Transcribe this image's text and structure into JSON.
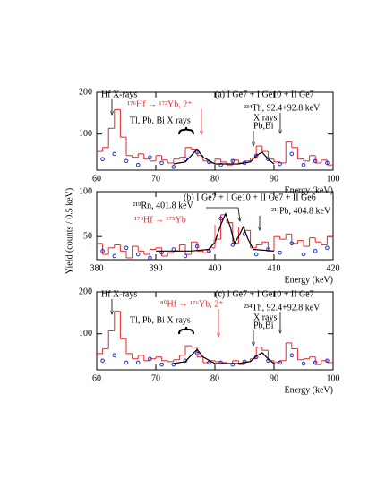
{
  "chart_data": [
    {
      "type": "histogram",
      "xlabel": "Energy (keV)",
      "log_y": true,
      "xlim": [
        60,
        100
      ],
      "ylim": [
        55,
        200
      ],
      "xticks": [
        60,
        70,
        80,
        90,
        100
      ],
      "yticks": [
        100,
        200
      ],
      "bins": [
        60,
        61,
        62,
        63,
        64,
        65,
        66,
        67,
        68,
        69,
        70,
        71,
        72,
        73,
        74,
        75,
        76,
        77,
        78,
        79,
        80,
        81,
        82,
        83,
        84,
        85,
        86,
        87,
        88,
        89,
        90,
        91,
        92,
        93,
        94,
        95,
        96,
        97,
        98,
        99,
        100
      ],
      "counts": [
        75,
        80,
        110,
        150,
        95,
        70,
        68,
        72,
        66,
        64,
        70,
        65,
        62,
        66,
        68,
        80,
        78,
        70,
        64,
        62,
        66,
        63,
        60,
        65,
        62,
        64,
        67,
        82,
        75,
        66,
        63,
        62,
        88,
        80,
        66,
        64,
        70,
        62,
        65,
        60
      ],
      "color": "#e8262a",
      "points": {
        "color": "#1f2fd6",
        "x": [
          61,
          63,
          65,
          67,
          69,
          71,
          73,
          75,
          77,
          79,
          81,
          83,
          85,
          87,
          89,
          91,
          93,
          95,
          97,
          99
        ],
        "values": [
          66,
          72,
          64,
          60,
          68,
          62,
          58,
          66,
          74,
          63,
          60,
          64,
          62,
          70,
          66,
          61,
          72,
          60,
          64,
          62
        ]
      },
      "fit": {
        "color": "#000000",
        "x": [
          73,
          75,
          76,
          77,
          78,
          80,
          84,
          86,
          87,
          88,
          89,
          90
        ],
        "values": [
          61,
          63,
          70,
          78,
          68,
          61,
          61,
          63,
          70,
          74,
          66,
          61
        ]
      },
      "annotations": [
        {
          "text": "Hf X-rays",
          "color": "#000000"
        },
        {
          "text": "(a) I Ge7 + I Ge10 + II Ge7",
          "color": "#000000"
        },
        {
          "text": "¹⁷⁶Hf → ¹⁷²Yb, 2⁺",
          "color": "#e8262a"
        },
        {
          "text": "²³⁴Th, 92.4+92.8 keV",
          "color": "#000000"
        },
        {
          "text": "Tl, Pb, Bi X rays",
          "color": "#000000"
        },
        {
          "text": "X rays",
          "color": "#000000"
        },
        {
          "text": "Pb,Bi",
          "color": "#000000"
        }
      ]
    },
    {
      "type": "histogram",
      "xlabel": "Energy (keV)",
      "ylabel": "Yield (counts / 0.5 keV)",
      "log_y": true,
      "xlim": [
        380,
        420
      ],
      "ylim": [
        35,
        100
      ],
      "xticks": [
        380,
        390,
        400,
        410,
        420
      ],
      "yticks": [
        50,
        100
      ],
      "bins": [
        380,
        381,
        382,
        383,
        384,
        385,
        386,
        387,
        388,
        389,
        390,
        391,
        392,
        393,
        394,
        395,
        396,
        397,
        398,
        399,
        400,
        401,
        402,
        403,
        404,
        405,
        406,
        407,
        408,
        409,
        410,
        411,
        412,
        413,
        414,
        415,
        416,
        417,
        418,
        419,
        420
      ],
      "counts": [
        45,
        38,
        42,
        44,
        40,
        36,
        43,
        40,
        38,
        41,
        42,
        37,
        39,
        40,
        44,
        38,
        46,
        40,
        39,
        42,
        48,
        70,
        62,
        45,
        58,
        55,
        42,
        44,
        46,
        40,
        50,
        48,
        52,
        45,
        47,
        43,
        49,
        46,
        44,
        50
      ],
      "color": "#e8262a",
      "points": {
        "color": "#1f2fd6",
        "x": [
          381,
          383,
          385,
          387,
          389,
          391,
          393,
          395,
          397,
          399,
          401,
          403,
          405,
          407,
          409,
          411,
          413,
          415,
          417,
          419
        ],
        "values": [
          40,
          37,
          42,
          38,
          36,
          39,
          41,
          37,
          43,
          40,
          66,
          44,
          52,
          38,
          41,
          39,
          45,
          38,
          40,
          42
        ]
      },
      "fit": {
        "color": "#000000",
        "x": [
          390,
          396,
          399,
          400,
          401,
          401.8,
          402.6,
          403.3,
          404,
          404.8,
          405.6,
          406.5,
          410
        ],
        "values": [
          40,
          40,
          41,
          46,
          60,
          71,
          58,
          45,
          50,
          58,
          48,
          41,
          40
        ]
      },
      "annotations": [
        {
          "text": "(b) I Ge7 + I Ge10 + II Ge7 + II Ge6",
          "color": "#000000"
        },
        {
          "text": "²¹⁹Rn, 401.8 keV",
          "color": "#000000"
        },
        {
          "text": "²¹¹Pb, 404.8 keV",
          "color": "#000000"
        },
        {
          "text": "¹⁷⁹Hf → ¹⁷⁵Yb",
          "color": "#e8262a"
        }
      ]
    },
    {
      "type": "histogram",
      "xlabel": "Energy (keV)",
      "log_y": true,
      "xlim": [
        60,
        100
      ],
      "ylim": [
        55,
        200
      ],
      "xticks": [
        60,
        70,
        80,
        90,
        100
      ],
      "yticks": [
        100,
        200
      ],
      "bins": [
        60,
        61,
        62,
        63,
        64,
        65,
        66,
        67,
        68,
        69,
        70,
        71,
        72,
        73,
        74,
        75,
        76,
        77,
        78,
        79,
        80,
        81,
        82,
        83,
        84,
        85,
        86,
        87,
        88,
        89,
        90,
        91,
        92,
        93,
        94,
        95,
        96,
        97,
        98,
        99,
        100
      ],
      "counts": [
        72,
        78,
        105,
        145,
        92,
        72,
        66,
        70,
        64,
        66,
        68,
        64,
        63,
        65,
        70,
        82,
        80,
        68,
        62,
        64,
        63,
        62,
        61,
        64,
        60,
        63,
        66,
        80,
        76,
        64,
        62,
        64,
        86,
        78,
        65,
        66,
        68,
        60,
        64,
        62
      ],
      "color": "#e8262a",
      "points": {
        "color": "#1f2fd6",
        "x": [
          61,
          63,
          65,
          67,
          69,
          71,
          73,
          75,
          77,
          79,
          81,
          83,
          85,
          87,
          89,
          91,
          93,
          95,
          97,
          99
        ],
        "values": [
          64,
          70,
          62,
          62,
          66,
          60,
          60,
          64,
          72,
          62,
          62,
          60,
          63,
          68,
          64,
          62,
          70,
          61,
          62,
          64
        ]
      },
      "fit": {
        "color": "#000000",
        "x": [
          73,
          75,
          76,
          77,
          78,
          80,
          84,
          86,
          87,
          88,
          89,
          90
        ],
        "values": [
          61,
          63,
          70,
          77,
          68,
          61,
          61,
          63,
          69,
          73,
          66,
          61
        ]
      },
      "annotations": [
        {
          "text": "Hf X-rays",
          "color": "#000000"
        },
        {
          "text": "(c) I Ge7 + I Ge10 + II Ge7",
          "color": "#000000"
        },
        {
          "text": "¹⁸⁰Hf → ¹⁷⁶Yb, 2⁺",
          "color": "#e8262a"
        },
        {
          "text": "²³⁴Th, 92.4+92.8 keV",
          "color": "#000000"
        },
        {
          "text": "Tl, Pb, Bi X rays",
          "color": "#000000"
        },
        {
          "text": "X rays",
          "color": "#000000"
        },
        {
          "text": "Pb,Bi",
          "color": "#000000"
        }
      ]
    }
  ]
}
